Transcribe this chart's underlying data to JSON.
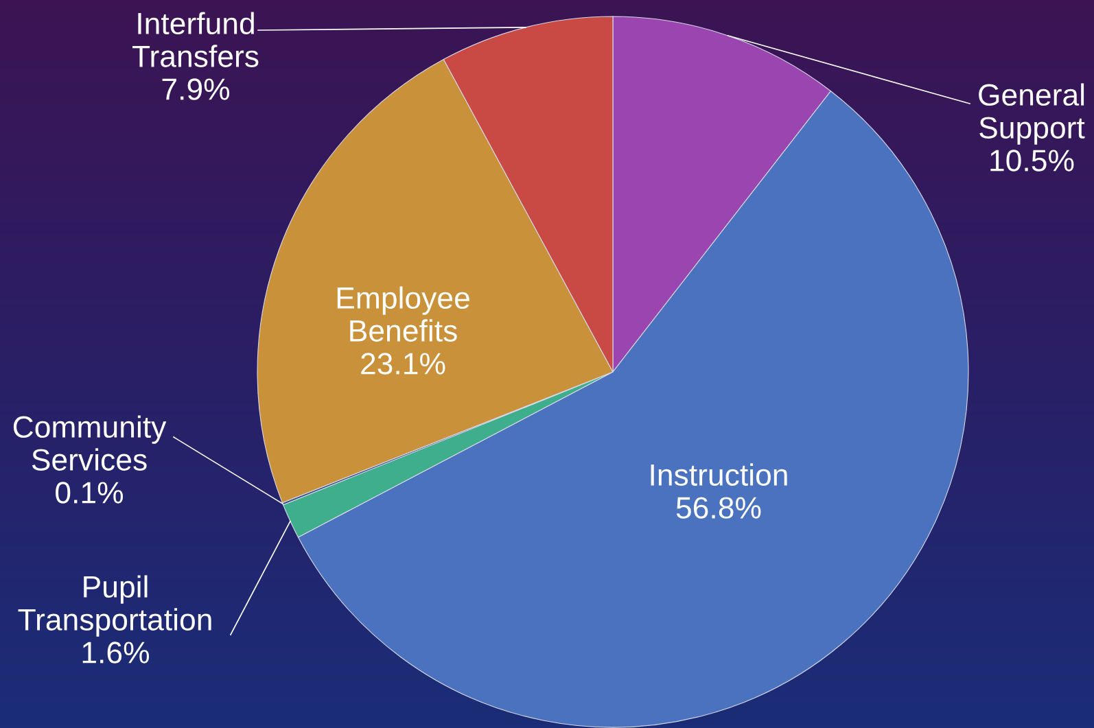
{
  "chart_data": {
    "type": "pie",
    "categories": [
      "General Support",
      "Instruction",
      "Pupil Transportation",
      "Community Services",
      "Employee Benefits",
      "Interfund Transfers"
    ],
    "values": [
      10.5,
      56.8,
      1.6,
      0.1,
      23.1,
      7.9
    ],
    "colors": [
      "#9b45b0",
      "#4a72be",
      "#3fae8c",
      "#2f4f86",
      "#c8913a",
      "#c94a45"
    ],
    "value_labels": [
      "10.5%",
      "56.8%",
      "1.6%",
      "0.1%",
      "23.1%",
      "7.9%"
    ]
  }
}
